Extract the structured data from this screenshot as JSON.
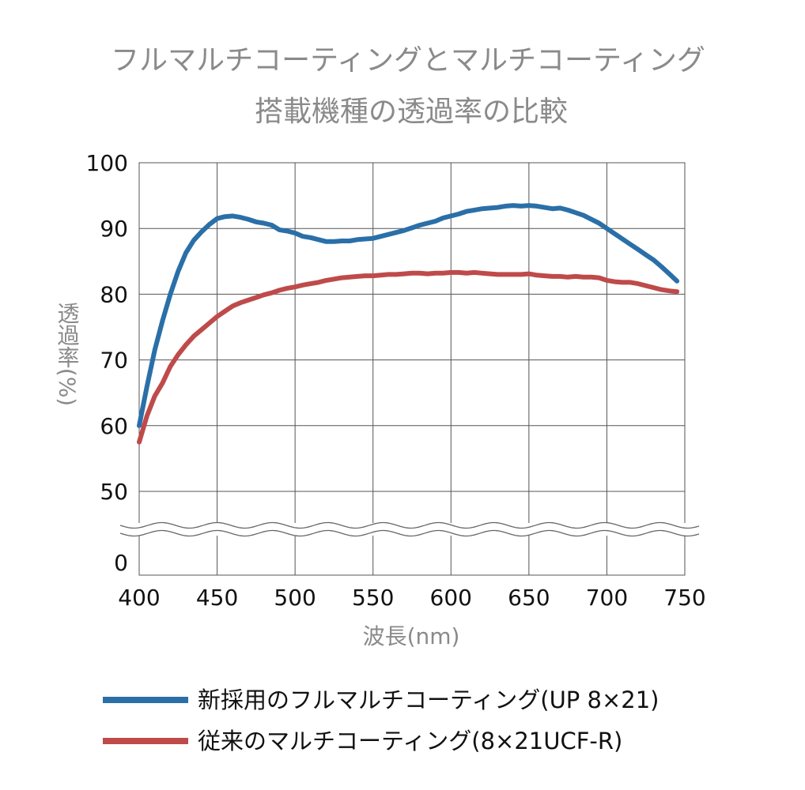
{
  "chart_data": {
    "type": "line",
    "title": "フルマルチコーティングとマルチコーティング",
    "subtitle": "搭載機種の透過率の比較",
    "xlabel": "波長(nm)",
    "ylabel": "透過率(%)",
    "xlim": [
      400,
      750
    ],
    "ylim_display": [
      0,
      100
    ],
    "ylim_continuous": [
      50,
      100
    ],
    "axis_break": "between 0 and 50",
    "x_ticks": [
      "400",
      "450",
      "500",
      "550",
      "600",
      "650",
      "700",
      "750"
    ],
    "y_ticks": [
      "100",
      "90",
      "80",
      "70",
      "60",
      "50",
      "0"
    ],
    "grid": true,
    "legend_position": "bottom",
    "series": [
      {
        "name": "新採用のフルマルチコーティング(UP 8×21)",
        "color": "#2a6fa8",
        "x": [
          400,
          405,
          410,
          415,
          420,
          425,
          430,
          435,
          440,
          445,
          450,
          455,
          460,
          465,
          470,
          475,
          480,
          485,
          490,
          495,
          500,
          505,
          510,
          515,
          520,
          525,
          530,
          535,
          540,
          545,
          550,
          555,
          560,
          565,
          570,
          575,
          580,
          585,
          590,
          595,
          600,
          605,
          610,
          615,
          620,
          625,
          630,
          635,
          640,
          645,
          650,
          655,
          660,
          665,
          670,
          675,
          680,
          685,
          690,
          695,
          700,
          705,
          710,
          715,
          720,
          725,
          730,
          735,
          740,
          745
        ],
        "y": [
          60,
          66,
          71.5,
          76,
          80,
          83.5,
          86.3,
          88.2,
          89.5,
          90.6,
          91.5,
          91.8,
          91.9,
          91.7,
          91.4,
          91.0,
          90.8,
          90.5,
          89.8,
          89.6,
          89.3,
          88.8,
          88.6,
          88.3,
          88.0,
          88.0,
          88.1,
          88.1,
          88.3,
          88.4,
          88.5,
          88.8,
          89.1,
          89.4,
          89.7,
          90.1,
          90.5,
          90.8,
          91.1,
          91.6,
          91.9,
          92.2,
          92.6,
          92.8,
          93.0,
          93.1,
          93.2,
          93.4,
          93.5,
          93.4,
          93.5,
          93.4,
          93.2,
          93.0,
          93.1,
          92.8,
          92.4,
          92.0,
          91.4,
          90.8,
          90.0,
          89.2,
          88.4,
          87.6,
          86.8,
          86.0,
          85.2,
          84.2,
          83.1,
          82.0
        ]
      },
      {
        "name": "従来のマルチコーティング(8×21UCF-R)",
        "color": "#bf4a4a",
        "x": [
          400,
          405,
          410,
          415,
          420,
          425,
          430,
          435,
          440,
          445,
          450,
          455,
          460,
          465,
          470,
          475,
          480,
          485,
          490,
          495,
          500,
          505,
          510,
          515,
          520,
          525,
          530,
          535,
          540,
          545,
          550,
          555,
          560,
          565,
          570,
          575,
          580,
          585,
          590,
          595,
          600,
          605,
          610,
          615,
          620,
          625,
          630,
          635,
          640,
          645,
          650,
          655,
          660,
          665,
          670,
          675,
          680,
          685,
          690,
          695,
          700,
          705,
          710,
          715,
          720,
          725,
          730,
          735,
          740,
          745
        ],
        "y": [
          57.5,
          61.5,
          64.5,
          66.5,
          69,
          70.8,
          72.3,
          73.6,
          74.6,
          75.6,
          76.6,
          77.4,
          78.2,
          78.7,
          79.1,
          79.5,
          79.9,
          80.2,
          80.6,
          80.9,
          81.1,
          81.4,
          81.6,
          81.8,
          82.1,
          82.3,
          82.5,
          82.6,
          82.7,
          82.8,
          82.8,
          82.9,
          83.0,
          83.0,
          83.1,
          83.2,
          83.2,
          83.1,
          83.2,
          83.2,
          83.3,
          83.3,
          83.2,
          83.3,
          83.2,
          83.1,
          83.0,
          83.0,
          83.0,
          83.0,
          83.1,
          82.9,
          82.8,
          82.7,
          82.7,
          82.6,
          82.7,
          82.6,
          82.6,
          82.5,
          82.1,
          81.9,
          81.8,
          81.8,
          81.6,
          81.3,
          81.0,
          80.7,
          80.5,
          80.4
        ]
      }
    ]
  }
}
